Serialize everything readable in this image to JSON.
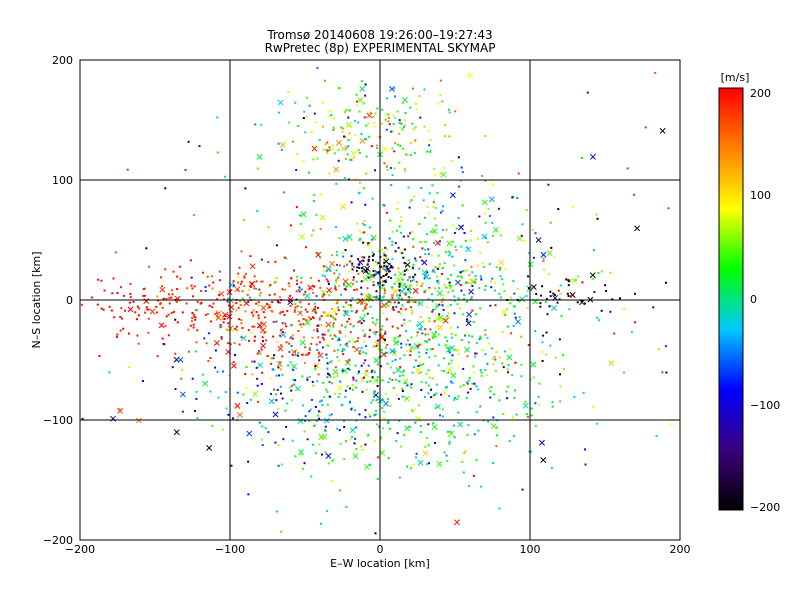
{
  "chart_data": {
    "type": "scatter",
    "title": "Tromsø 20140608 19:26:00–19:27:43",
    "subtitle": "RwPretec (8p) EXPERIMENTAL SKYMAP",
    "xlabel": "E–W location [km]",
    "ylabel": "N–S location [km]",
    "xlim": [
      -200,
      200
    ],
    "ylim": [
      -200,
      200
    ],
    "xticks": [
      "−200",
      "−100",
      "0",
      "100",
      "200"
    ],
    "yticks": [
      "−200",
      "−100",
      "0",
      "100",
      "200"
    ],
    "grid": "on",
    "colorbar": {
      "label": "[m/s]",
      "range": [
        -200,
        200
      ],
      "ticks": [
        "200",
        "100",
        "0",
        "−100",
        "−200"
      ],
      "colormap": [
        "#000000",
        "#3b0080",
        "#0000ff",
        "#00c8ff",
        "#00ff00",
        "#ffff00",
        "#ff8000",
        "#ff0000"
      ]
    },
    "clusters": [
      {
        "x": 20,
        "y": 10,
        "sx": 45,
        "sy": 40,
        "v": 20,
        "vs": 60,
        "n": 650
      },
      {
        "x": -60,
        "y": -10,
        "sx": 50,
        "sy": 25,
        "v": 185,
        "vs": 25,
        "n": 420
      },
      {
        "x": -150,
        "y": -5,
        "sx": 25,
        "sy": 12,
        "v": 195,
        "vs": 10,
        "n": 90
      },
      {
        "x": 10,
        "y": -80,
        "sx": 55,
        "sy": 35,
        "v": 20,
        "vs": 40,
        "n": 420
      },
      {
        "x": 0,
        "y": 140,
        "sx": 30,
        "sy": 20,
        "v": 60,
        "vs": 70,
        "n": 200
      },
      {
        "x": 0,
        "y": 25,
        "sx": 12,
        "sy": 8,
        "v": -180,
        "vs": 20,
        "n": 70
      },
      {
        "x": -50,
        "y": -70,
        "sx": 50,
        "sy": 30,
        "v": -90,
        "vs": 50,
        "n": 140
      },
      {
        "x": 120,
        "y": 5,
        "sx": 15,
        "sy": 6,
        "v": -190,
        "vs": 10,
        "n": 30
      },
      {
        "x": 20,
        "y": 0,
        "sx": 110,
        "sy": 90,
        "v": 0,
        "vs": 150,
        "n": 300
      }
    ]
  }
}
